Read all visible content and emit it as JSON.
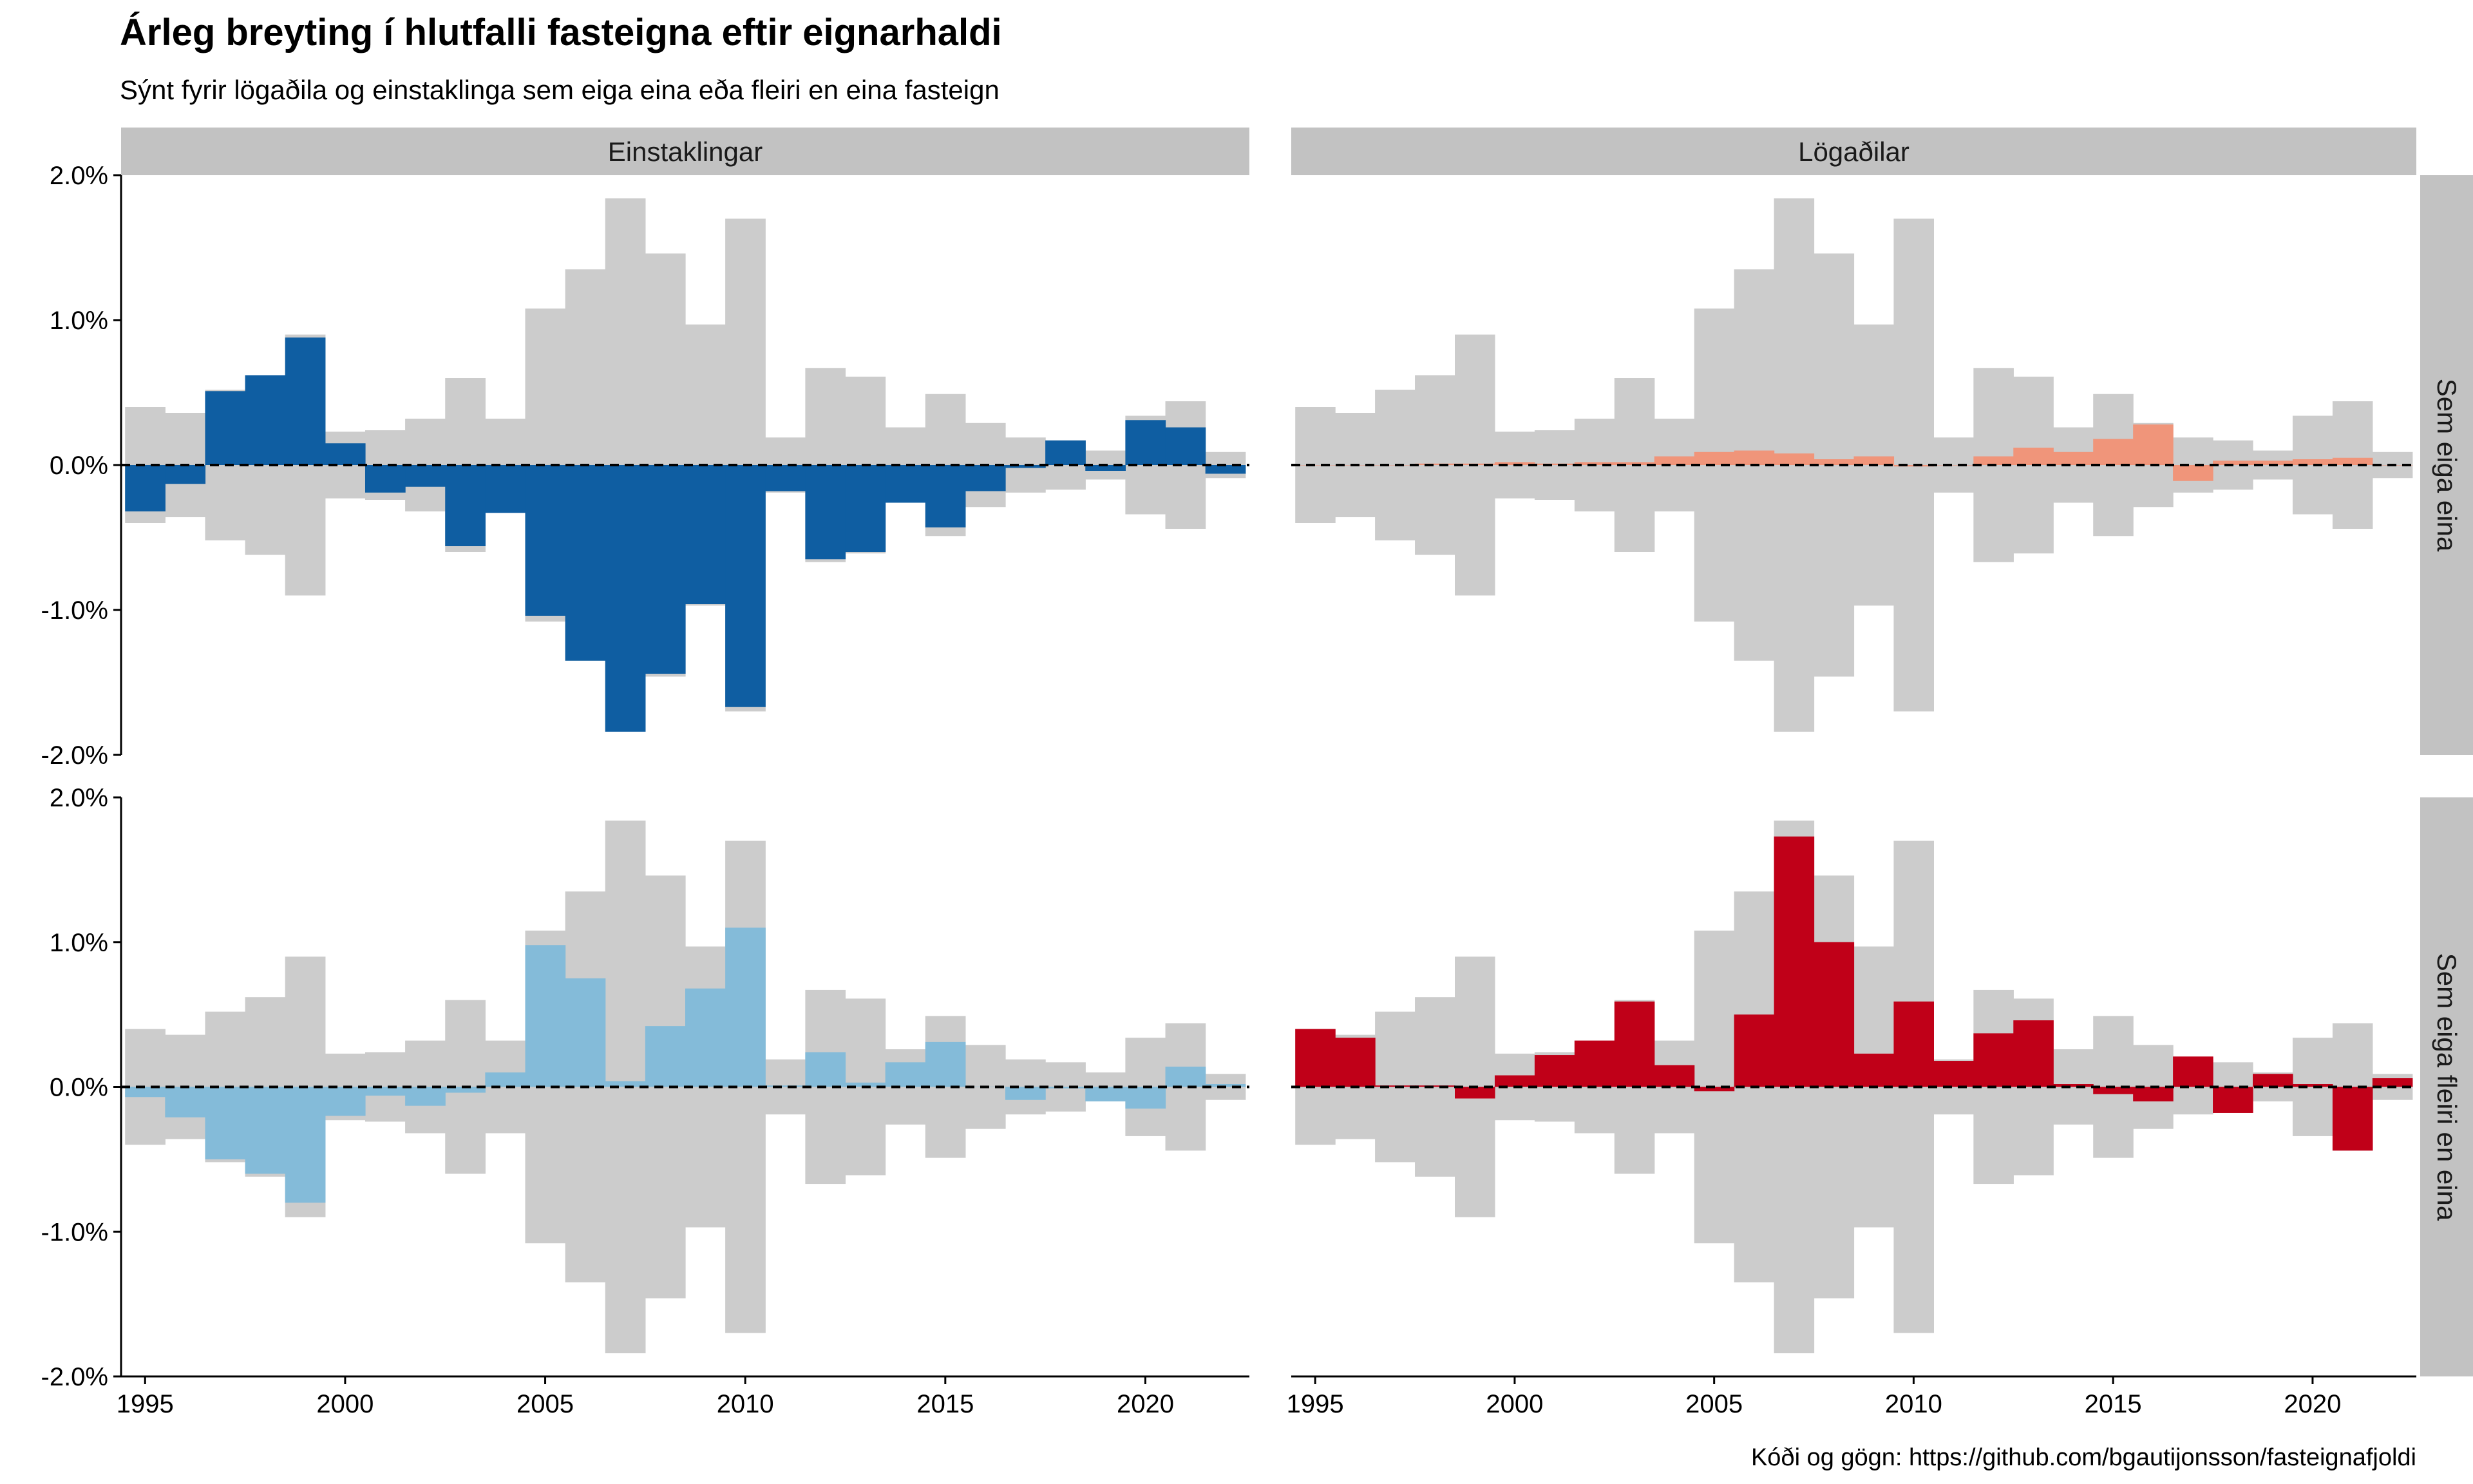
{
  "chart_data": {
    "type": "bar",
    "title": "Árleg breyting í hlutfalli fasteigna eftir eignarhaldi",
    "subtitle": "Sýnt fyrir lögaðila og einstaklinga sem eiga eina eða fleiri en eina fasteign",
    "caption": "Kóði og gögn: https://github.com/bgautijonsson/fasteignafjoldi",
    "column_facets": [
      "Einstaklingar",
      "Lögaðilar"
    ],
    "row_facets": [
      "Sem eiga eina",
      "Sem eiga fleiri en eina"
    ],
    "x_ticks": [
      1995,
      2000,
      2005,
      2010,
      2015,
      2020
    ],
    "y_ticks": [
      {
        "value": 2.0,
        "label": "2.0%"
      },
      {
        "value": 1.0,
        "label": "1.0%"
      },
      {
        "value": 0.0,
        "label": "0.0%"
      },
      {
        "value": -1.0,
        "label": "-1.0%"
      },
      {
        "value": -2.0,
        "label": "-2.0%"
      }
    ],
    "xlim": [
      1994.4,
      2022.6
    ],
    "ylim": [
      -2.0,
      2.0
    ],
    "years": [
      1995,
      1996,
      1997,
      1998,
      1999,
      2000,
      2001,
      2002,
      2003,
      2004,
      2005,
      2006,
      2007,
      2008,
      2009,
      2010,
      2011,
      2012,
      2013,
      2014,
      2015,
      2016,
      2017,
      2018,
      2019,
      2020,
      2021,
      2022
    ],
    "background_total": [
      0.4,
      0.36,
      0.52,
      0.62,
      0.9,
      0.23,
      0.24,
      0.32,
      0.6,
      0.32,
      1.08,
      1.35,
      1.84,
      1.46,
      0.97,
      1.7,
      0.19,
      0.67,
      0.61,
      0.26,
      0.49,
      0.29,
      0.19,
      0.17,
      0.1,
      0.34,
      0.44,
      0.09
    ],
    "colors": {
      "background": "#cccccc",
      "strip": "#c2c2c2",
      "Einstaklingar|Sem eiga eina": "#0f5ea2",
      "Einstaklingar|Sem eiga fleiri en eina": "#84bbd9",
      "Lögaðilar|Sem eiga eina": "#f0957a",
      "Lögaðilar|Sem eiga fleiri en eina": "#c00018"
    },
    "series": [
      {
        "column": "Einstaklingar",
        "row": "Sem eiga eina",
        "values": [
          -0.32,
          -0.13,
          0.51,
          0.62,
          0.88,
          0.15,
          -0.19,
          -0.15,
          -0.56,
          -0.33,
          -1.04,
          -1.35,
          -1.84,
          -1.44,
          -0.96,
          -1.67,
          -0.18,
          -0.65,
          -0.6,
          -0.26,
          -0.43,
          -0.18,
          -0.02,
          0.17,
          -0.04,
          0.31,
          0.26,
          -0.06
        ]
      },
      {
        "column": "Lögaðilar",
        "row": "Sem eiga eina",
        "values": [
          0.0,
          0.0,
          0.0,
          0.01,
          0.01,
          0.02,
          0.01,
          0.02,
          0.02,
          0.06,
          0.09,
          0.1,
          0.08,
          0.04,
          0.06,
          -0.01,
          0.0,
          0.06,
          0.12,
          0.09,
          0.18,
          0.28,
          -0.11,
          0.03,
          0.03,
          0.04,
          0.05,
          0.0
        ]
      },
      {
        "column": "Einstaklingar",
        "row": "Sem eiga fleiri en eina",
        "values": [
          -0.07,
          -0.21,
          -0.5,
          -0.6,
          -0.8,
          -0.2,
          -0.06,
          -0.13,
          -0.04,
          0.1,
          0.98,
          0.75,
          0.04,
          0.42,
          0.68,
          1.1,
          0.01,
          0.24,
          0.03,
          0.17,
          0.31,
          0.0,
          -0.09,
          -0.01,
          -0.1,
          -0.15,
          0.14,
          0.02
        ]
      },
      {
        "column": "Lögaðilar",
        "row": "Sem eiga fleiri en eina",
        "values": [
          0.4,
          0.34,
          0.01,
          0.01,
          -0.08,
          0.08,
          0.22,
          0.32,
          0.59,
          0.15,
          -0.03,
          0.5,
          1.73,
          1.0,
          0.23,
          0.59,
          0.18,
          0.37,
          0.46,
          0.02,
          -0.05,
          -0.1,
          0.21,
          -0.18,
          0.09,
          0.02,
          -0.44,
          0.06
        ]
      }
    ],
    "reference_line": 0,
    "legend": "none"
  }
}
